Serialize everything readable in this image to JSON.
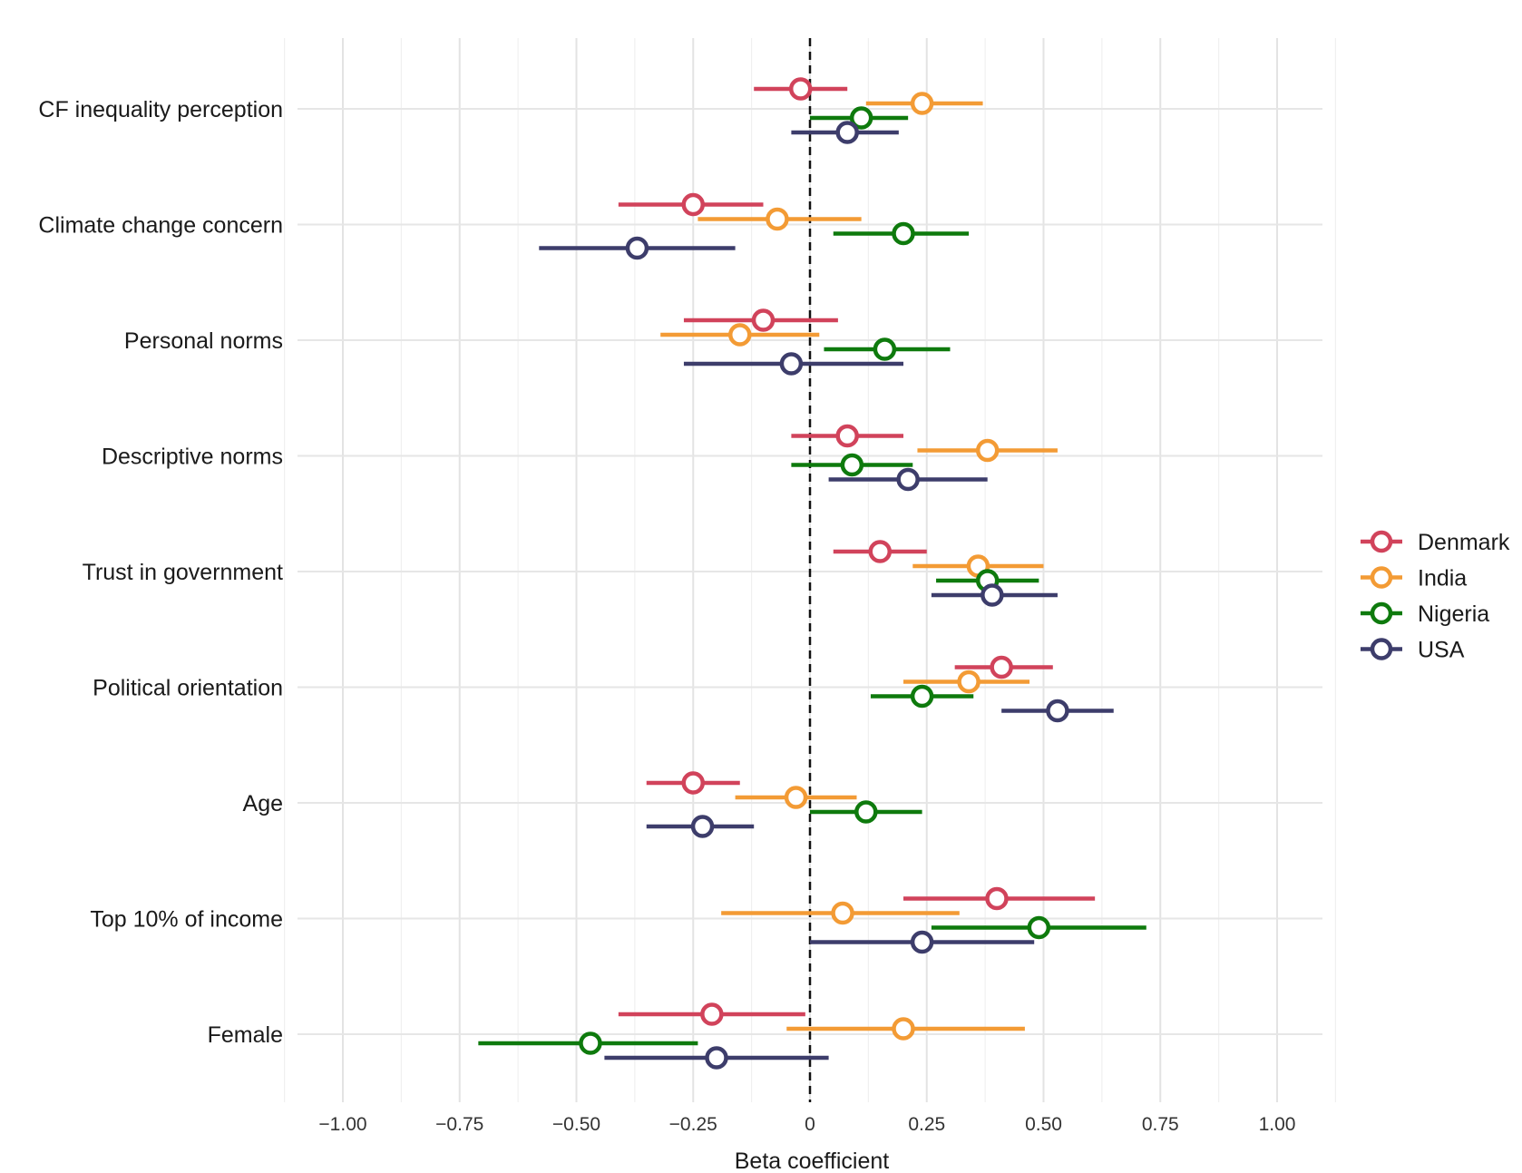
{
  "chart_data": {
    "type": "forest",
    "title": "",
    "xlabel": "Beta coefficient",
    "ylabel": "",
    "xlim": [
      -1.1,
      1.1
    ],
    "x_ticks": [
      -1.0,
      -0.75,
      -0.5,
      -0.25,
      0,
      0.25,
      0.5,
      0.75,
      1.0
    ],
    "x_tick_labels": [
      "−1.00",
      "−0.75",
      "−0.50",
      "−0.25",
      "0",
      "0.25",
      "0.50",
      "0.75",
      "1.00"
    ],
    "reference_line": 0,
    "grid": true,
    "legend_position": "right",
    "categories": [
      "CF inequality perception",
      "Climate change concern",
      "Personal norms",
      "Descriptive norms",
      "Trust in government",
      "Political orientation",
      "Age",
      "Top 10% of income",
      "Female"
    ],
    "series": [
      {
        "name": "Denmark",
        "color": "#d1435b",
        "estimates": [
          -0.02,
          -0.25,
          -0.1,
          0.08,
          0.15,
          0.41,
          -0.25,
          0.4,
          -0.21
        ],
        "lower": [
          -0.12,
          -0.41,
          -0.27,
          -0.04,
          0.05,
          0.31,
          -0.35,
          0.2,
          -0.41
        ],
        "upper": [
          0.08,
          -0.1,
          0.06,
          0.2,
          0.25,
          0.52,
          -0.15,
          0.61,
          -0.01
        ]
      },
      {
        "name": "India",
        "color": "#f39b35",
        "estimates": [
          0.24,
          -0.07,
          -0.15,
          0.38,
          0.36,
          0.34,
          -0.03,
          0.07,
          0.2
        ],
        "lower": [
          0.12,
          -0.24,
          -0.32,
          0.23,
          0.22,
          0.2,
          -0.16,
          -0.19,
          -0.05
        ],
        "upper": [
          0.37,
          0.11,
          0.02,
          0.53,
          0.5,
          0.47,
          0.1,
          0.32,
          0.46
        ]
      },
      {
        "name": "Nigeria",
        "color": "#0e7a0d",
        "estimates": [
          0.11,
          0.2,
          0.16,
          0.09,
          0.38,
          0.24,
          0.12,
          0.49,
          -0.47
        ],
        "lower": [
          0.0,
          0.05,
          0.03,
          -0.04,
          0.27,
          0.13,
          0.0,
          0.26,
          -0.71
        ],
        "upper": [
          0.21,
          0.34,
          0.3,
          0.22,
          0.49,
          0.35,
          0.24,
          0.72,
          -0.24
        ]
      },
      {
        "name": "USA",
        "color": "#3d3d6b",
        "estimates": [
          0.08,
          -0.37,
          -0.04,
          0.21,
          0.39,
          0.53,
          -0.23,
          0.24,
          -0.2
        ],
        "lower": [
          -0.04,
          -0.58,
          -0.27,
          0.04,
          0.26,
          0.41,
          -0.35,
          0.0,
          -0.44
        ],
        "upper": [
          0.19,
          -0.16,
          0.2,
          0.38,
          0.53,
          0.65,
          -0.12,
          0.48,
          0.04
        ]
      }
    ]
  }
}
